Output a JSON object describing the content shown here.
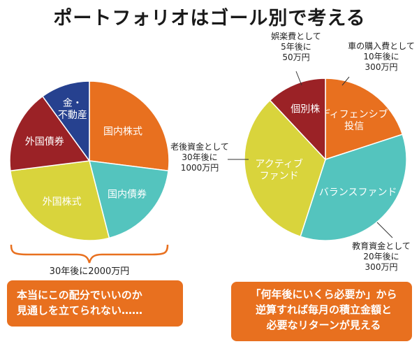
{
  "title": "ポートフォリオはゴール別で考える",
  "chart_data": [
    {
      "type": "pie",
      "name": "left-pie",
      "slices": [
        {
          "label": "国内株式",
          "value": 27,
          "color": "#e8701f"
        },
        {
          "label": "国内債券",
          "value": 19,
          "color": "#54c4be"
        },
        {
          "label": "外国株式",
          "value": 27,
          "color": "#d9d43c"
        },
        {
          "label": "外国債券",
          "value": 17,
          "color": "#9b2226"
        },
        {
          "label": "金・不動産",
          "value": 10,
          "color": "#26418f"
        }
      ],
      "bracket_label": "30年後に2000万円"
    },
    {
      "type": "pie",
      "name": "right-pie",
      "slices": [
        {
          "label": "ディフェンシブ投信",
          "value": 20,
          "color": "#e8701f",
          "goal": [
            "車の購入費として",
            "10年後に",
            "300万円"
          ]
        },
        {
          "label": "バランスファンド",
          "value": 35,
          "color": "#54c4be",
          "goal": [
            "教育資金として",
            "20年後に",
            "300万円"
          ]
        },
        {
          "label": "アクティブファンド",
          "value": 33,
          "color": "#d9d43c",
          "goal": [
            "老後資金として",
            "30年後に",
            "1000万円"
          ]
        },
        {
          "label": "個別株",
          "value": 12,
          "color": "#9b2226",
          "goal": [
            "娯楽費として",
            "5年後に",
            "50万円"
          ]
        }
      ]
    }
  ],
  "notes": {
    "left": [
      "本当にこの配分でいいのか",
      "見通しを立てられない……"
    ],
    "right": [
      "「何年後にいくら必要か」から",
      "逆算すれば毎月の積立金額と",
      "必要なリターンが見える"
    ]
  }
}
